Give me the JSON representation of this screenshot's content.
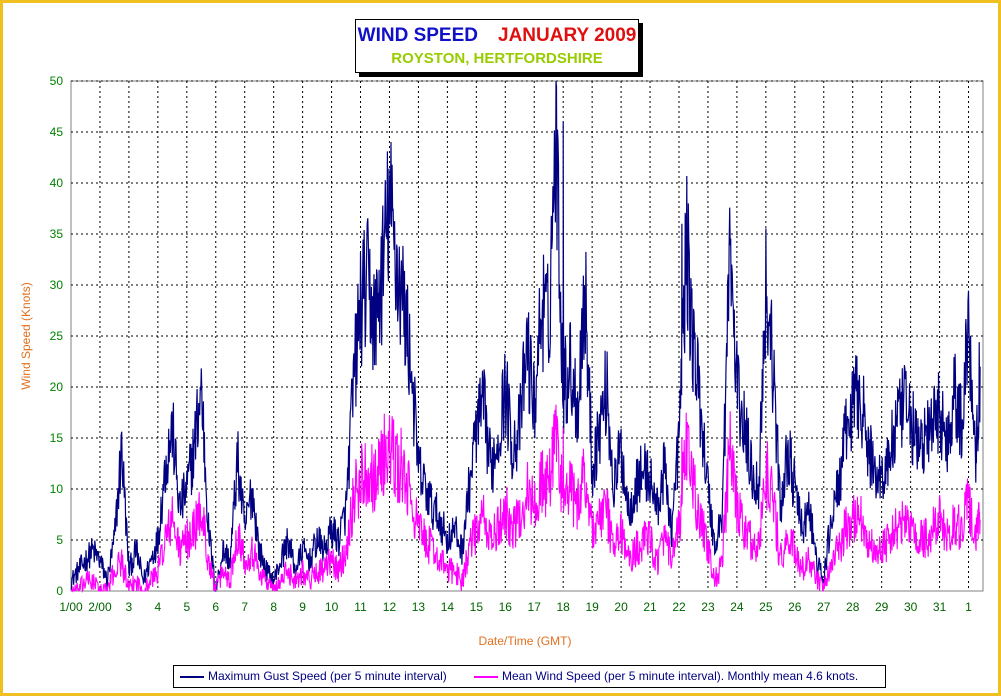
{
  "chart_data": {
    "type": "line",
    "title": "WIND SPEED",
    "title_month": "JANUARY 2009",
    "subtitle": "ROYSTON, HERTFORDSHIRE",
    "xlabel": "Date/Time (GMT)",
    "ylabel": "Wind Speed (Knots)",
    "ylim": [
      0,
      50
    ],
    "yticks": [
      "0",
      "5",
      "10",
      "15",
      "20",
      "25",
      "30",
      "35",
      "40",
      "45",
      "50"
    ],
    "xlim": [
      1,
      32.5
    ],
    "xticks": [
      "1/00",
      "2/00",
      "3",
      "4",
      "5",
      "6",
      "7",
      "8",
      "9",
      "10",
      "11",
      "12",
      "13",
      "14",
      "15",
      "16",
      "17",
      "18",
      "19",
      "20",
      "21",
      "22",
      "23",
      "24",
      "25",
      "26",
      "27",
      "28",
      "29",
      "30",
      "31",
      "1"
    ],
    "grid": true,
    "legend_position": "bottom",
    "series": [
      {
        "name": "Maximum Gust Speed (per 5 minute interval)",
        "color": "#000080",
        "x": [
          1.0,
          1.25,
          1.5,
          1.75,
          2.0,
          2.25,
          2.5,
          2.75,
          3.0,
          3.25,
          3.5,
          3.75,
          4.0,
          4.25,
          4.5,
          4.75,
          5.0,
          5.25,
          5.5,
          5.75,
          6.0,
          6.25,
          6.5,
          6.75,
          7.0,
          7.25,
          7.5,
          7.75,
          8.0,
          8.25,
          8.5,
          8.75,
          9.0,
          9.25,
          9.5,
          9.75,
          10.0,
          10.25,
          10.5,
          10.75,
          11.0,
          11.25,
          11.5,
          11.75,
          12.0,
          12.25,
          12.5,
          12.75,
          13.0,
          13.25,
          13.5,
          13.75,
          14.0,
          14.25,
          14.5,
          14.75,
          15.0,
          15.25,
          15.5,
          15.75,
          16.0,
          16.25,
          16.5,
          16.75,
          17.0,
          17.25,
          17.5,
          17.75,
          18.0,
          18.25,
          18.5,
          18.75,
          19.0,
          19.25,
          19.5,
          19.75,
          20.0,
          20.25,
          20.5,
          20.75,
          21.0,
          21.25,
          21.5,
          21.75,
          22.0,
          22.25,
          22.5,
          22.75,
          23.0,
          23.25,
          23.5,
          23.75,
          24.0,
          24.25,
          24.5,
          24.75,
          25.0,
          25.25,
          25.5,
          25.75,
          26.0,
          26.25,
          26.5,
          26.75,
          27.0,
          27.25,
          27.5,
          27.75,
          28.0,
          28.25,
          28.5,
          28.75,
          29.0,
          29.25,
          29.5,
          29.75,
          30.0,
          30.25,
          30.5,
          30.75,
          31.0,
          31.25,
          31.5,
          31.75,
          32.0,
          32.25,
          32.4
        ],
        "values": [
          1,
          2,
          3,
          4,
          3,
          1,
          5,
          14,
          2,
          4,
          1,
          3,
          5,
          12,
          16,
          8,
          10,
          14,
          20,
          6,
          0,
          4,
          3,
          13,
          6,
          10,
          4,
          2,
          1,
          3,
          5,
          2,
          4,
          3,
          5,
          4,
          6,
          5,
          8,
          20,
          28,
          30,
          26,
          31,
          38,
          32,
          28,
          22,
          12,
          10,
          8,
          7,
          5,
          6,
          4,
          10,
          16,
          18,
          12,
          15,
          20,
          14,
          16,
          24,
          18,
          28,
          26,
          46,
          20,
          22,
          18,
          30,
          12,
          16,
          20,
          10,
          14,
          8,
          10,
          12,
          11,
          8,
          12,
          6,
          15,
          34,
          24,
          18,
          10,
          4,
          8,
          34,
          20,
          16,
          12,
          10,
          30,
          22,
          8,
          14,
          10,
          6,
          8,
          3,
          1,
          7,
          10,
          15,
          18,
          20,
          14,
          12,
          11,
          13,
          16,
          18,
          17,
          14,
          15,
          16,
          18,
          14,
          20,
          16,
          26,
          14,
          22
        ],
        "extra_peaks": [
          {
            "x": 11.9,
            "value": 36
          },
          {
            "x": 18.0,
            "value": 46
          },
          {
            "x": 22.1,
            "value": 36
          },
          {
            "x": 31.9,
            "value": 26
          }
        ]
      },
      {
        "name": "Mean Wind Speed (per 5 minute interval). Monthly mean 4.6 knots.",
        "color": "#ff00ff",
        "x": [
          1.0,
          1.25,
          1.5,
          1.75,
          2.0,
          2.25,
          2.5,
          2.75,
          3.0,
          3.25,
          3.5,
          3.75,
          4.0,
          4.25,
          4.5,
          4.75,
          5.0,
          5.25,
          5.5,
          5.75,
          6.0,
          6.25,
          6.5,
          6.75,
          7.0,
          7.25,
          7.5,
          7.75,
          8.0,
          8.25,
          8.5,
          8.75,
          9.0,
          9.25,
          9.5,
          9.75,
          10.0,
          10.25,
          10.5,
          10.75,
          11.0,
          11.25,
          11.5,
          11.75,
          12.0,
          12.25,
          12.5,
          12.75,
          13.0,
          13.25,
          13.5,
          13.75,
          14.0,
          14.25,
          14.5,
          14.75,
          15.0,
          15.25,
          15.5,
          15.75,
          16.0,
          16.25,
          16.5,
          16.75,
          17.0,
          17.25,
          17.5,
          17.75,
          18.0,
          18.25,
          18.5,
          18.75,
          19.0,
          19.25,
          19.5,
          19.75,
          20.0,
          20.25,
          20.5,
          20.75,
          21.0,
          21.25,
          21.5,
          21.75,
          22.0,
          22.25,
          22.5,
          22.75,
          23.0,
          23.25,
          23.5,
          23.75,
          24.0,
          24.25,
          24.5,
          24.75,
          25.0,
          25.25,
          25.5,
          25.75,
          26.0,
          26.25,
          26.5,
          26.75,
          27.0,
          27.25,
          27.5,
          27.75,
          28.0,
          28.25,
          28.5,
          28.75,
          29.0,
          29.25,
          29.5,
          29.75,
          30.0,
          30.25,
          30.5,
          30.75,
          31.0,
          31.25,
          31.5,
          31.75,
          32.0,
          32.25,
          32.4
        ],
        "values": [
          0,
          0,
          1,
          1,
          0,
          0,
          2,
          3,
          0,
          1,
          0,
          1,
          2,
          5,
          7,
          4,
          5,
          6,
          8,
          3,
          0,
          2,
          1,
          6,
          3,
          4,
          2,
          1,
          0,
          1,
          2,
          1,
          2,
          1,
          2,
          2,
          3,
          2,
          4,
          9,
          11,
          12,
          11,
          13,
          14,
          12,
          11,
          9,
          6,
          5,
          4,
          3,
          2,
          2,
          1,
          4,
          6,
          7,
          5,
          6,
          8,
          6,
          7,
          10,
          8,
          11,
          10,
          16,
          9,
          10,
          8,
          12,
          6,
          7,
          8,
          4,
          6,
          3,
          4,
          5,
          5,
          3,
          5,
          3,
          6,
          14,
          10,
          7,
          4,
          1,
          3,
          14,
          8,
          6,
          5,
          4,
          12,
          9,
          3,
          5,
          4,
          2,
          3,
          1,
          0,
          3,
          4,
          6,
          7,
          8,
          5,
          4,
          4,
          5,
          6,
          7,
          6,
          5,
          5,
          6,
          7,
          5,
          7,
          6,
          9,
          5,
          7
        ],
        "extra_peaks": [
          {
            "x": 12.4,
            "value": 16
          },
          {
            "x": 18.0,
            "value": 16
          },
          {
            "x": 22.1,
            "value": 15
          },
          {
            "x": 23.8,
            "value": 14
          }
        ]
      }
    ]
  }
}
